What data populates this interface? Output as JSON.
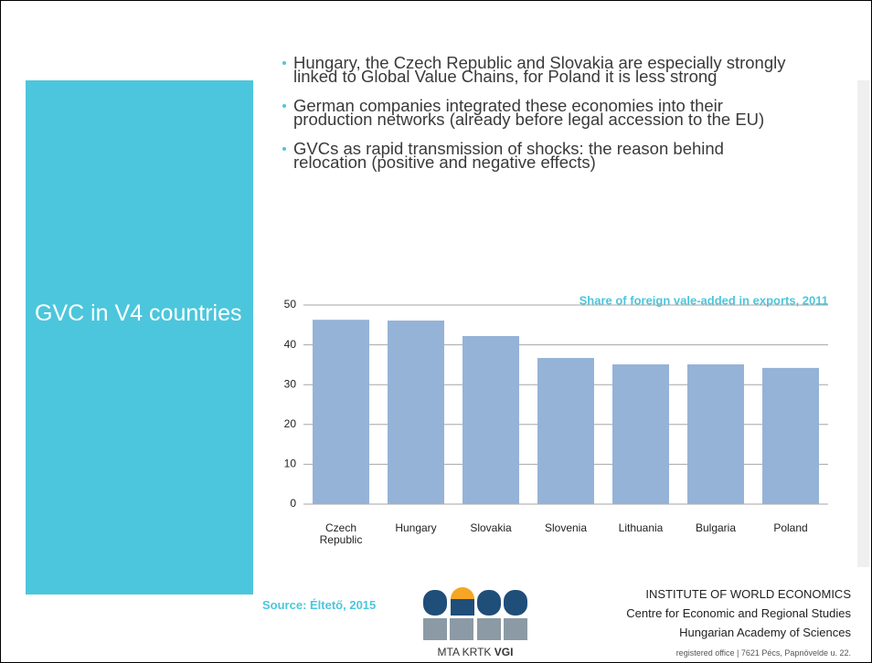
{
  "slide": {
    "title": "GVC in V4 countries",
    "bullets": [
      "Hungary, the Czech Republic and Slovakia are especially strongly linked to Global Value Chains, for Poland it is less strong",
      "German companies integrated these economies into their production networks (already before legal accession to the EU)",
      "GVCs as rapid transmission of shocks: the reason behind relocation (positive and negative effects)"
    ],
    "source": "Source: Éltető, 2015",
    "logo": {
      "text": "MTA KRTK",
      "bold": "VGI"
    },
    "institute": {
      "name": "INSTITUTE OF WORLD ECONOMICS",
      "line1": "Centre for Economic and Regional Studies",
      "line2": "Hungarian Academy of Sciences",
      "address": "registered office | 7621 Pécs, Papnövelde u. 22."
    }
  },
  "chart_data": {
    "type": "bar",
    "title": "Share of foreign vale-added in exports, 2011",
    "categories": [
      "Czech Republic",
      "Hungary",
      "Slovakia",
      "Slovenia",
      "Lithuania",
      "Bulgaria",
      "Poland"
    ],
    "values": [
      46.3,
      46.1,
      42.2,
      36.7,
      35.1,
      35.1,
      34.2
    ],
    "color": "#95b3d7",
    "ylim": [
      0,
      50
    ],
    "yticks": [
      0,
      10,
      20,
      30,
      40,
      50
    ],
    "grid": true
  }
}
